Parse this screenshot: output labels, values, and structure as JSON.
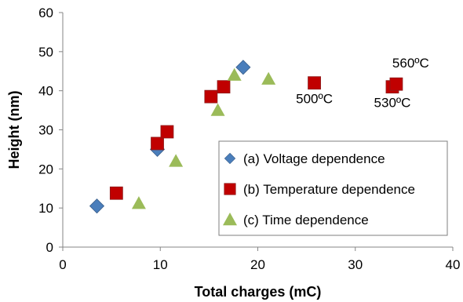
{
  "chart_data": {
    "type": "scatter",
    "xlabel": "Total charges (mC)",
    "ylabel": "Height (nm)",
    "xlim": [
      0,
      40
    ],
    "ylim": [
      0,
      60
    ],
    "xticks": [
      0,
      10,
      20,
      30,
      40
    ],
    "yticks": [
      0,
      10,
      20,
      30,
      40,
      50,
      60
    ],
    "grid": false,
    "legend_position": "bottom-right",
    "series": [
      {
        "name": "(a) Voltage dependence",
        "marker": "diamond",
        "color": "#4a7ebb",
        "points": [
          [
            3.5,
            10.5
          ],
          [
            9.7,
            25
          ],
          [
            18.5,
            46
          ]
        ]
      },
      {
        "name": "(b) Temperature dependence",
        "marker": "square",
        "color": "#c00000",
        "points": [
          [
            5.5,
            13.8
          ],
          [
            9.7,
            26.5
          ],
          [
            10.7,
            29.5
          ],
          [
            15.2,
            38.5
          ],
          [
            16.5,
            41
          ],
          [
            25.8,
            42
          ],
          [
            33.8,
            41
          ],
          [
            34.2,
            41.7
          ]
        ]
      },
      {
        "name": "(c) Time dependence",
        "marker": "triangle",
        "color": "#9bbb59",
        "points": [
          [
            7.8,
            11.2
          ],
          [
            11.6,
            22
          ],
          [
            15.9,
            35
          ],
          [
            17.6,
            44
          ],
          [
            21.1,
            43
          ]
        ]
      }
    ],
    "annotations": [
      {
        "text": "560ºC",
        "x": 34.2,
        "y": 41.7,
        "placement": "above-right"
      },
      {
        "text": "500ºC",
        "x": 25.8,
        "y": 42,
        "placement": "below"
      },
      {
        "text": "530ºC",
        "x": 33.8,
        "y": 41,
        "placement": "below"
      }
    ]
  }
}
